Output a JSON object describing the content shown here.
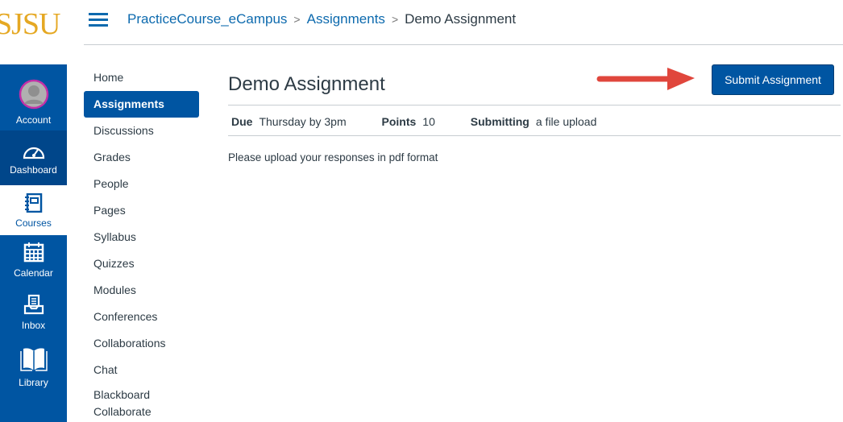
{
  "logo": "SJSU",
  "global_nav": [
    {
      "label": "Account",
      "icon": "avatar-icon"
    },
    {
      "label": "Dashboard",
      "icon": "dashboard-icon"
    },
    {
      "label": "Courses",
      "icon": "courses-icon"
    },
    {
      "label": "Calendar",
      "icon": "calendar-icon"
    },
    {
      "label": "Inbox",
      "icon": "inbox-icon"
    },
    {
      "label": "Library",
      "icon": "library-icon"
    }
  ],
  "breadcrumb": {
    "course": "PracticeCourse_eCampus",
    "section": "Assignments",
    "current": "Demo Assignment"
  },
  "course_nav": [
    "Home",
    "Assignments",
    "Discussions",
    "Grades",
    "People",
    "Pages",
    "Syllabus",
    "Quizzes",
    "Modules",
    "Conferences",
    "Collaborations",
    "Chat",
    "Blackboard Collaborate"
  ],
  "assignment": {
    "title": "Demo Assignment",
    "submit_label": "Submit Assignment",
    "due_label": "Due",
    "due": "Thursday by 3pm",
    "points_label": "Points",
    "points": "10",
    "submitting_label": "Submitting",
    "submitting": "a file upload",
    "description": "Please upload your responses in pdf format"
  },
  "colors": {
    "brand": "#0055a2",
    "logo": "#e5a823",
    "arrow": "#e0463c"
  }
}
